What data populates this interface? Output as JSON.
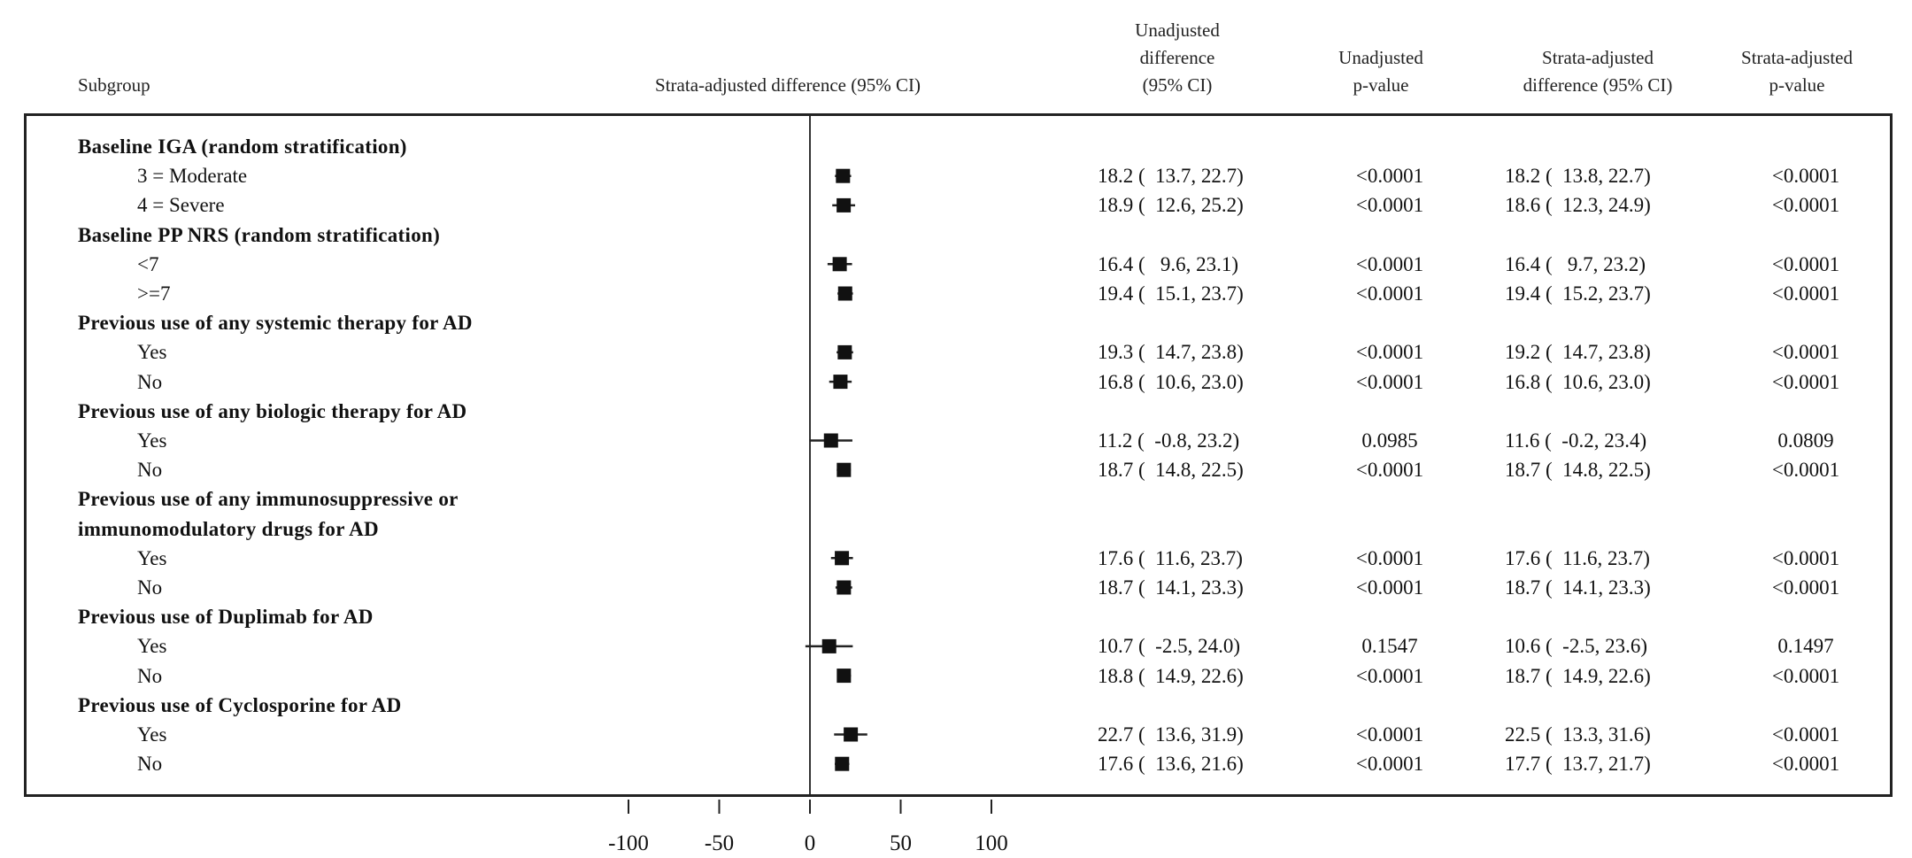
{
  "headers": {
    "subgroup": "Subgroup",
    "forest": "Strata-adjusted difference (95% CI)",
    "unadj_diff": [
      "Unadjusted",
      "difference",
      "(95% CI)"
    ],
    "unadj_p": [
      "Unadjusted",
      "p-value"
    ],
    "adj_diff": [
      "Strata-adjusted",
      "difference (95% CI)"
    ],
    "adj_p": [
      "Strata-adjusted",
      "p-value"
    ]
  },
  "rows": [
    {
      "label": "Baseline IGA (random stratification)",
      "type": "group"
    },
    {
      "label": "3 = Moderate",
      "type": "item",
      "unadj": "18.2 (  13.7, 22.7)",
      "unadj_p": "<0.0001",
      "adj": "18.2 (  13.8, 22.7)",
      "adj_p": "<0.0001"
    },
    {
      "label": "4 = Severe",
      "type": "item",
      "unadj": "18.9 (  12.6, 25.2)",
      "unadj_p": "<0.0001",
      "adj": "18.6 (  12.3, 24.9)",
      "adj_p": "<0.0001"
    },
    {
      "label": "Baseline PP NRS (random stratification)",
      "type": "group"
    },
    {
      "label": "<7",
      "type": "item",
      "unadj": "16.4 (   9.6, 23.1)",
      "unadj_p": "<0.0001",
      "adj": "16.4 (   9.7, 23.2)",
      "adj_p": "<0.0001"
    },
    {
      "label": ">=7",
      "type": "item",
      "unadj": "19.4 (  15.1, 23.7)",
      "unadj_p": "<0.0001",
      "adj": "19.4 (  15.2, 23.7)",
      "adj_p": "<0.0001"
    },
    {
      "label": "Previous use of any systemic therapy for AD",
      "type": "group"
    },
    {
      "label": "Yes",
      "type": "item",
      "unadj": "19.3 (  14.7, 23.8)",
      "unadj_p": "<0.0001",
      "adj": "19.2 (  14.7, 23.8)",
      "adj_p": "<0.0001"
    },
    {
      "label": "No",
      "type": "item",
      "unadj": "16.8 (  10.6, 23.0)",
      "unadj_p": "<0.0001",
      "adj": "16.8 (  10.6, 23.0)",
      "adj_p": "<0.0001"
    },
    {
      "label": "Previous use of any biologic therapy for AD",
      "type": "group"
    },
    {
      "label": "Yes",
      "type": "item",
      "unadj": "11.2 (  -0.8, 23.2)",
      "unadj_p": "0.0985",
      "adj": "11.6 (  -0.2, 23.4)",
      "adj_p": "0.0809"
    },
    {
      "label": "No",
      "type": "item",
      "unadj": "18.7 (  14.8, 22.5)",
      "unadj_p": "<0.0001",
      "adj": "18.7 (  14.8, 22.5)",
      "adj_p": "<0.0001"
    },
    {
      "label": "Previous use of any immunosuppressive or",
      "type": "group"
    },
    {
      "label": "immunomodulatory drugs for AD",
      "type": "group"
    },
    {
      "label": "Yes",
      "type": "item",
      "unadj": "17.6 (  11.6, 23.7)",
      "unadj_p": "<0.0001",
      "adj": "17.6 (  11.6, 23.7)",
      "adj_p": "<0.0001"
    },
    {
      "label": "No",
      "type": "item",
      "unadj": "18.7 (  14.1, 23.3)",
      "unadj_p": "<0.0001",
      "adj": "18.7 (  14.1, 23.3)",
      "adj_p": "<0.0001"
    },
    {
      "label": "Previous use of Duplimab for AD",
      "type": "group"
    },
    {
      "label": "Yes",
      "type": "item",
      "unadj": "10.7 (  -2.5, 24.0)",
      "unadj_p": "0.1547",
      "adj": "10.6 (  -2.5, 23.6)",
      "adj_p": "0.1497"
    },
    {
      "label": "No",
      "type": "item",
      "unadj": "18.8 (  14.9, 22.6)",
      "unadj_p": "<0.0001",
      "adj": "18.7 (  14.9, 22.6)",
      "adj_p": "<0.0001"
    },
    {
      "label": "Previous use of Cyclosporine for AD",
      "type": "group"
    },
    {
      "label": "Yes",
      "type": "item",
      "unadj": "22.7 (  13.6, 31.9)",
      "unadj_p": "<0.0001",
      "adj": "22.5 (  13.3, 31.6)",
      "adj_p": "<0.0001"
    },
    {
      "label": "No",
      "type": "item",
      "unadj": "17.6 (  13.6, 21.6)",
      "unadj_p": "<0.0001",
      "adj": "17.7 (  13.7, 21.7)",
      "adj_p": "<0.0001"
    }
  ],
  "chart_data": {
    "type": "scatter",
    "subtype": "forest-plot",
    "xlabel": "Strata-adjusted difference (95% CI)",
    "xlim": [
      -100,
      100
    ],
    "xticks": [
      -100,
      -50,
      0,
      50,
      100
    ],
    "reference_line": 0,
    "points": [
      {
        "subgroup": "Baseline IGA (random stratification) - 3 = Moderate",
        "est": 18.2,
        "lo": 13.8,
        "hi": 22.7
      },
      {
        "subgroup": "Baseline IGA (random stratification) - 4 = Severe",
        "est": 18.6,
        "lo": 12.3,
        "hi": 24.9
      },
      {
        "subgroup": "Baseline PP NRS - <7",
        "est": 16.4,
        "lo": 9.7,
        "hi": 23.2
      },
      {
        "subgroup": "Baseline PP NRS - >=7",
        "est": 19.4,
        "lo": 15.2,
        "hi": 23.7
      },
      {
        "subgroup": "Systemic therapy - Yes",
        "est": 19.2,
        "lo": 14.7,
        "hi": 23.8
      },
      {
        "subgroup": "Systemic therapy - No",
        "est": 16.8,
        "lo": 10.6,
        "hi": 23.0
      },
      {
        "subgroup": "Biologic therapy - Yes",
        "est": 11.6,
        "lo": -0.2,
        "hi": 23.4
      },
      {
        "subgroup": "Biologic therapy - No",
        "est": 18.7,
        "lo": 14.8,
        "hi": 22.5
      },
      {
        "subgroup": "Immunosuppressive/immunomodulatory - Yes",
        "est": 17.6,
        "lo": 11.6,
        "hi": 23.7
      },
      {
        "subgroup": "Immunosuppressive/immunomodulatory - No",
        "est": 18.7,
        "lo": 14.1,
        "hi": 23.3
      },
      {
        "subgroup": "Duplimab - Yes",
        "est": 10.6,
        "lo": -2.5,
        "hi": 23.6
      },
      {
        "subgroup": "Duplimab - No",
        "est": 18.7,
        "lo": 14.9,
        "hi": 22.6
      },
      {
        "subgroup": "Cyclosporine - Yes",
        "est": 22.5,
        "lo": 13.3,
        "hi": 31.6
      },
      {
        "subgroup": "Cyclosporine - No",
        "est": 17.7,
        "lo": 13.7,
        "hi": 21.7
      }
    ],
    "colors": {
      "marker": "#111111",
      "line": "#222222"
    }
  }
}
